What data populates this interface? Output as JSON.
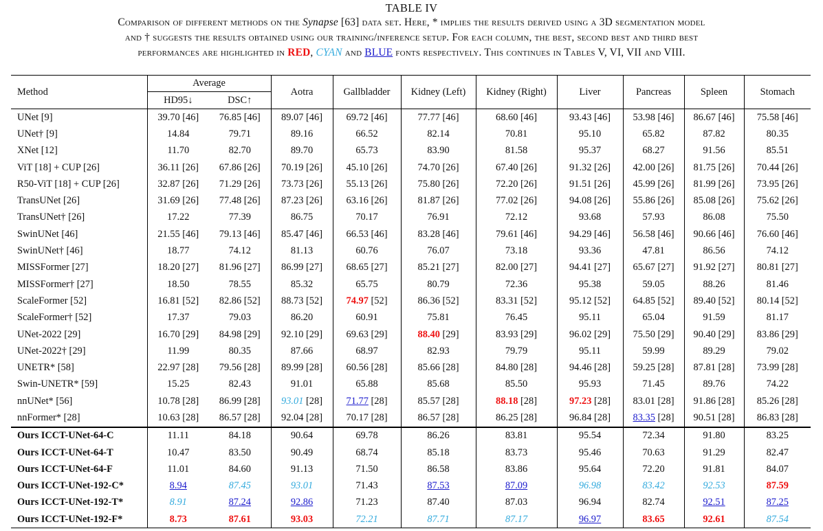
{
  "caption": {
    "title": "TABLE IV",
    "line1_prefix": "Comparison of different methods on the ",
    "line1_dataset": "Synapse",
    "line1_suffix": " [63] data set. Here, * implies the results derived using a 3D segmentation model",
    "line2": "and † suggests the results obtained using our training/inference setup. For each column, the best, second best and third best",
    "line3_prefix": "performances are highlighted in ",
    "line3_red": "RED",
    "line3_mid1": ", ",
    "line3_cyan": "CYAN",
    "line3_mid2": " and ",
    "line3_blue": "BLUE",
    "line3_suffix": " fonts respectively. This continues in Tables V, VI, VII and VIII."
  },
  "colors": {
    "best": "#ee1111",
    "second": "#33aadd",
    "third": "#1a1acc"
  },
  "table": {
    "headers": {
      "method": "Method",
      "average": "Average",
      "hd95": "HD95↓",
      "dsc": "DSC↑",
      "organs": [
        "Aotra",
        "Gallbladder",
        "Kidney (Left)",
        "Kidney (Right)",
        "Liver",
        "Pancreas",
        "Spleen",
        "Stomach"
      ]
    },
    "rows": [
      {
        "method": "UNet [9]",
        "values": [
          "39.70 [46]",
          "76.85 [46]",
          "89.07 [46]",
          "69.72 [46]",
          "77.77 [46]",
          "68.60 [46]",
          "93.43 [46]",
          "53.98 [46]",
          "86.67 [46]",
          "75.58 [46]"
        ]
      },
      {
        "method": "UNet† [9]",
        "values": [
          "14.84",
          "79.71",
          "89.16",
          "66.52",
          "82.14",
          "70.81",
          "95.10",
          "65.82",
          "87.82",
          "80.35"
        ]
      },
      {
        "method": "XNet [12]",
        "values": [
          "11.70",
          "82.70",
          "89.70",
          "65.73",
          "83.90",
          "81.58",
          "95.37",
          "68.27",
          "91.56",
          "85.51"
        ]
      },
      {
        "method": "ViT [18] + CUP [26]",
        "values": [
          "36.11 [26]",
          "67.86 [26]",
          "70.19 [26]",
          "45.10 [26]",
          "74.70 [26]",
          "67.40 [26]",
          "91.32 [26]",
          "42.00 [26]",
          "81.75 [26]",
          "70.44 [26]"
        ]
      },
      {
        "method": "R50-ViT [18] + CUP [26]",
        "values": [
          "32.87 [26]",
          "71.29 [26]",
          "73.73 [26]",
          "55.13 [26]",
          "75.80 [26]",
          "72.20 [26]",
          "91.51 [26]",
          "45.99 [26]",
          "81.99 [26]",
          "73.95 [26]"
        ]
      },
      {
        "method": "TransUNet [26]",
        "values": [
          "31.69 [26]",
          "77.48 [26]",
          "87.23 [26]",
          "63.16 [26]",
          "81.87 [26]",
          "77.02 [26]",
          "94.08 [26]",
          "55.86 [26]",
          "85.08 [26]",
          "75.62 [26]"
        ]
      },
      {
        "method": "TransUNet† [26]",
        "values": [
          "17.22",
          "77.39",
          "86.75",
          "70.17",
          "76.91",
          "72.12",
          "93.68",
          "57.93",
          "86.08",
          "75.50"
        ]
      },
      {
        "method": "SwinUNet [46]",
        "values": [
          "21.55 [46]",
          "79.13 [46]",
          "85.47 [46]",
          "66.53 [46]",
          "83.28 [46]",
          "79.61 [46]",
          "94.29 [46]",
          "56.58 [46]",
          "90.66 [46]",
          "76.60 [46]"
        ]
      },
      {
        "method": "SwinUNet† [46]",
        "values": [
          "18.77",
          "74.12",
          "81.13",
          "60.76",
          "76.07",
          "73.18",
          "93.36",
          "47.81",
          "86.56",
          "74.12"
        ]
      },
      {
        "method": "MISSFormer [27]",
        "values": [
          "18.20 [27]",
          "81.96 [27]",
          "86.99 [27]",
          "68.65 [27]",
          "85.21 [27]",
          "82.00 [27]",
          "94.41 [27]",
          "65.67 [27]",
          "91.92 [27]",
          "80.81 [27]"
        ]
      },
      {
        "method": "MISSFormer† [27]",
        "values": [
          "18.50",
          "78.55",
          "85.32",
          "65.75",
          "80.79",
          "72.36",
          "95.38",
          "59.05",
          "88.26",
          "81.46"
        ]
      },
      {
        "method": "ScaleFormer [52]",
        "values": [
          "16.81 [52]",
          "82.86 [52]",
          "88.73 [52]",
          "74.97 [52]",
          "86.36 [52]",
          "83.31 [52]",
          "95.12 [52]",
          "64.85 [52]",
          "89.40 [52]",
          "80.14 [52]"
        ]
      },
      {
        "method": "ScaleFormer† [52]",
        "values": [
          "17.37",
          "79.03",
          "86.20",
          "60.91",
          "75.81",
          "76.45",
          "95.11",
          "65.04",
          "91.59",
          "81.17"
        ]
      },
      {
        "method": "UNet-2022 [29]",
        "values": [
          "16.70 [29]",
          "84.98 [29]",
          "92.10 [29]",
          "69.63 [29]",
          "88.40 [29]",
          "83.93 [29]",
          "96.02 [29]",
          "75.50 [29]",
          "90.40 [29]",
          "83.86 [29]"
        ]
      },
      {
        "method": "UNet-2022† [29]",
        "values": [
          "11.99",
          "80.35",
          "87.66",
          "68.97",
          "82.93",
          "79.79",
          "95.11",
          "59.99",
          "89.29",
          "79.02"
        ]
      },
      {
        "method": "UNETR* [58]",
        "values": [
          "22.97 [28]",
          "79.56 [28]",
          "89.99 [28]",
          "60.56 [28]",
          "85.66 [28]",
          "84.80 [28]",
          "94.46 [28]",
          "59.25 [28]",
          "87.81 [28]",
          "73.99 [28]"
        ]
      },
      {
        "method": "Swin-UNETR* [59]",
        "values": [
          "15.25",
          "82.43",
          "91.01",
          "65.88",
          "85.68",
          "85.50",
          "95.93",
          "71.45",
          "89.76",
          "74.22"
        ]
      },
      {
        "method": "nnUNet* [56]",
        "values": [
          "10.78 [28]",
          "86.99 [28]",
          "93.01 [28]",
          "71.77 [28]",
          "85.57 [28]",
          "88.18 [28]",
          "97.23 [28]",
          "83.01 [28]",
          "91.86 [28]",
          "85.26 [28]"
        ]
      },
      {
        "method": "nnFormer* [28]",
        "values": [
          "10.63 [28]",
          "86.57 [28]",
          "92.04 [28]",
          "70.17 [28]",
          "86.57 [28]",
          "86.25 [28]",
          "96.84 [28]",
          "83.35 [28]",
          "90.51 [28]",
          "86.83 [28]"
        ]
      },
      {
        "method": "Ours ICCT-UNet-64-C",
        "values": [
          "11.11",
          "84.18",
          "90.64",
          "69.78",
          "86.26",
          "83.81",
          "95.54",
          "72.34",
          "91.80",
          "83.25"
        ]
      },
      {
        "method": "Ours ICCT-UNet-64-T",
        "values": [
          "10.47",
          "83.50",
          "90.49",
          "68.74",
          "85.18",
          "83.73",
          "95.46",
          "70.63",
          "91.29",
          "82.47"
        ]
      },
      {
        "method": "Ours ICCT-UNet-64-F",
        "values": [
          "11.01",
          "84.60",
          "91.13",
          "71.50",
          "86.58",
          "83.86",
          "95.64",
          "72.20",
          "91.81",
          "84.07"
        ]
      },
      {
        "method": "Ours ICCT-UNet-192-C*",
        "values": [
          "8.94",
          "87.45",
          "93.01",
          "71.43",
          "87.53",
          "87.09",
          "96.98",
          "83.42",
          "92.53",
          "87.59"
        ]
      },
      {
        "method": "Ours ICCT-UNet-192-T*",
        "values": [
          "8.91",
          "87.24",
          "92.86",
          "71.23",
          "87.40",
          "87.03",
          "96.94",
          "82.74",
          "92.51",
          "87.25"
        ]
      },
      {
        "method": "Ours ICCT-UNet-192-F*",
        "values": [
          "8.73",
          "87.61",
          "93.03",
          "72.21",
          "87.71",
          "87.17",
          "96.97",
          "83.65",
          "92.61",
          "87.54"
        ]
      }
    ],
    "highlights": [
      {
        "row": 11,
        "col": 3,
        "rank": "best"
      },
      {
        "row": 13,
        "col": 4,
        "rank": "best"
      },
      {
        "row": 17,
        "col": 2,
        "rank": "second"
      },
      {
        "row": 17,
        "col": 3,
        "rank": "third"
      },
      {
        "row": 17,
        "col": 5,
        "rank": "best"
      },
      {
        "row": 17,
        "col": 6,
        "rank": "best"
      },
      {
        "row": 18,
        "col": 7,
        "rank": "third"
      },
      {
        "row": 22,
        "col": 0,
        "rank": "third"
      },
      {
        "row": 22,
        "col": 1,
        "rank": "second"
      },
      {
        "row": 22,
        "col": 2,
        "rank": "second"
      },
      {
        "row": 22,
        "col": 4,
        "rank": "third"
      },
      {
        "row": 22,
        "col": 5,
        "rank": "third"
      },
      {
        "row": 22,
        "col": 6,
        "rank": "second"
      },
      {
        "row": 22,
        "col": 7,
        "rank": "second"
      },
      {
        "row": 22,
        "col": 8,
        "rank": "second"
      },
      {
        "row": 22,
        "col": 9,
        "rank": "best"
      },
      {
        "row": 23,
        "col": 0,
        "rank": "second"
      },
      {
        "row": 23,
        "col": 1,
        "rank": "third"
      },
      {
        "row": 23,
        "col": 2,
        "rank": "third"
      },
      {
        "row": 23,
        "col": 8,
        "rank": "third"
      },
      {
        "row": 23,
        "col": 9,
        "rank": "third"
      },
      {
        "row": 24,
        "col": 0,
        "rank": "best"
      },
      {
        "row": 24,
        "col": 1,
        "rank": "best"
      },
      {
        "row": 24,
        "col": 2,
        "rank": "best"
      },
      {
        "row": 24,
        "col": 3,
        "rank": "second"
      },
      {
        "row": 24,
        "col": 4,
        "rank": "second"
      },
      {
        "row": 24,
        "col": 5,
        "rank": "second"
      },
      {
        "row": 24,
        "col": 6,
        "rank": "third"
      },
      {
        "row": 24,
        "col": 7,
        "rank": "best"
      },
      {
        "row": 24,
        "col": 8,
        "rank": "best"
      },
      {
        "row": 24,
        "col": 9,
        "rank": "second"
      }
    ],
    "ours_start_row": 19
  }
}
